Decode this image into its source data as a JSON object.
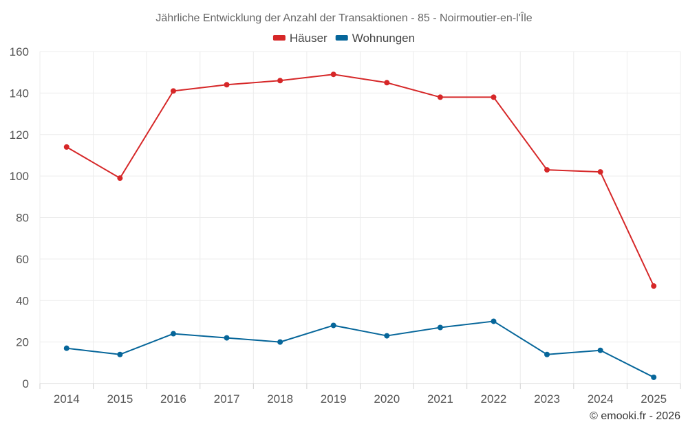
{
  "chart_data": {
    "type": "line",
    "title": "Jährliche Entwicklung der Anzahl der Transaktionen - 85 - Noirmoutier-en-l'Île",
    "categories": [
      "2014",
      "2015",
      "2016",
      "2017",
      "2018",
      "2019",
      "2020",
      "2021",
      "2022",
      "2023",
      "2024",
      "2025"
    ],
    "series": [
      {
        "name": "Häuser",
        "color": "#d62728",
        "values": [
          114,
          99,
          141,
          144,
          146,
          149,
          145,
          138,
          138,
          103,
          102,
          47
        ]
      },
      {
        "name": "Wohnungen",
        "color": "#06669a",
        "values": [
          17,
          14,
          24,
          22,
          20,
          28,
          23,
          27,
          30,
          14,
          16,
          3
        ]
      }
    ],
    "ylim": [
      0,
      160
    ],
    "yticks": [
      0,
      20,
      40,
      60,
      80,
      100,
      120,
      140,
      160
    ],
    "xlabel": "",
    "ylabel": "",
    "grid": true,
    "legend_position": "top-center",
    "credit": "© emooki.fr - 2026"
  }
}
